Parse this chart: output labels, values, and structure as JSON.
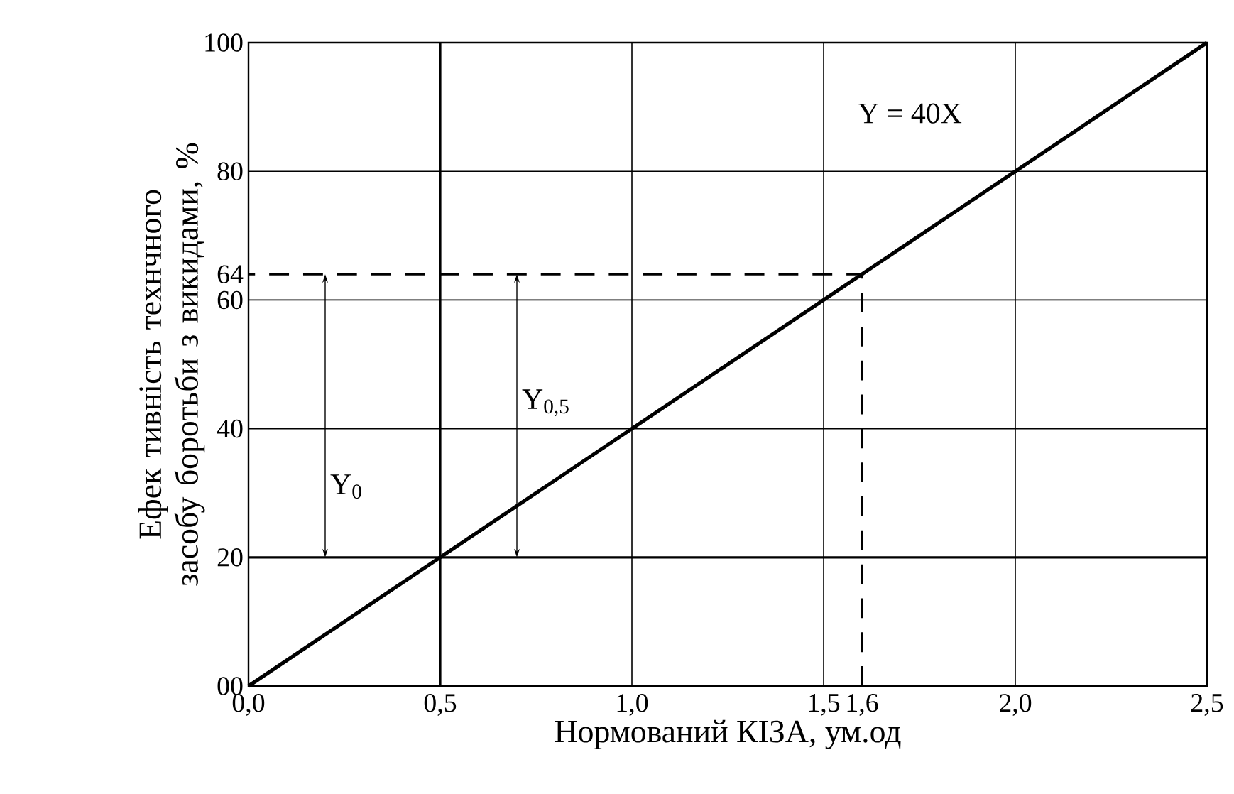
{
  "chart_data": {
    "type": "line",
    "xlabel": "Нормований КІЗА, ум.од",
    "ylabel": "Ефек тивність технчного засобу боротьби з викидами, %",
    "series": [
      {
        "x": [
          0,
          2.5
        ],
        "values": [
          0,
          100
        ],
        "color": "#000000",
        "line_style": "solid"
      },
      {
        "x": [
          0.5,
          0.5
        ],
        "values": [
          0,
          100
        ],
        "color": "#000000",
        "line_style": "solid"
      },
      {
        "x": [
          0,
          2.5
        ],
        "values": [
          20,
          20
        ],
        "color": "#000000",
        "line_style": "solid"
      },
      {
        "x": [
          1.6,
          1.6,
          0
        ],
        "values": [
          0,
          64,
          64
        ],
        "color": "#000000",
        "line_style": "dashed"
      }
    ],
    "xlim": [
      0,
      2.5
    ],
    "ylim": [
      0,
      100
    ],
    "xticks": [
      {
        "value": 0,
        "label": "0,0"
      },
      {
        "value": 0.5,
        "label": "0,5"
      },
      {
        "value": 1.0,
        "label": "1,0"
      },
      {
        "value": 1.5,
        "label": "1,5"
      },
      {
        "value": 1.6,
        "label": "1,6"
      },
      {
        "value": 2.0,
        "label": "2,0"
      },
      {
        "value": 2.5,
        "label": "2,5"
      }
    ],
    "yticks": [
      {
        "value": 0,
        "label": "00"
      },
      20,
      40,
      60,
      64,
      80,
      100
    ],
    "grid": true,
    "annotations": [
      "Y = 40X",
      "Y$_{0}$",
      "Y$_{0,5}$"
    ]
  }
}
